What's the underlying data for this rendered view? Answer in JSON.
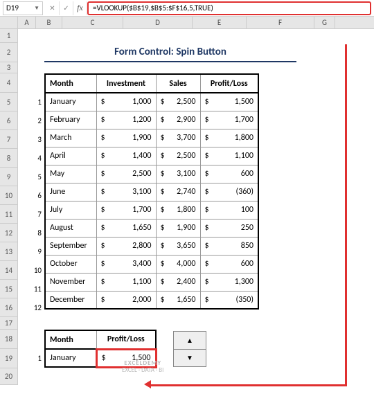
{
  "formula_bar": {
    "name_box": "D19",
    "cancel": "✕",
    "confirm": "✓",
    "fx": "fx",
    "formula": "=VLOOKUP($B$19,$B$5:$F$16,5,TRUE)"
  },
  "columns": [
    "A",
    "B",
    "C",
    "D",
    "E",
    "F",
    "G"
  ],
  "rows": [
    "1",
    "2",
    "3",
    "4",
    "5",
    "6",
    "7",
    "8",
    "9",
    "10",
    "11",
    "12",
    "13",
    "14",
    "15",
    "16",
    "17",
    "18",
    "19",
    "20"
  ],
  "title": "Form Control: Spin Button",
  "headers": {
    "month": "Month",
    "investment": "Investment",
    "sales": "Sales",
    "profit_loss": "Profit/Loss"
  },
  "currency": "$",
  "data": [
    {
      "idx": "1",
      "month": "January",
      "inv": "1,000",
      "sales": "2,500",
      "pl": "1,500"
    },
    {
      "idx": "2",
      "month": "February",
      "inv": "1,200",
      "sales": "2,900",
      "pl": "1,700"
    },
    {
      "idx": "3",
      "month": "March",
      "inv": "1,900",
      "sales": "3,700",
      "pl": "1,800"
    },
    {
      "idx": "4",
      "month": "April",
      "inv": "1,400",
      "sales": "2,500",
      "pl": "1,100"
    },
    {
      "idx": "5",
      "month": "May",
      "inv": "2,500",
      "sales": "3,100",
      "pl": "600"
    },
    {
      "idx": "6",
      "month": "June",
      "inv": "3,100",
      "sales": "2,740",
      "pl": "(360)"
    },
    {
      "idx": "7",
      "month": "July",
      "inv": "1,700",
      "sales": "1,800",
      "pl": "100"
    },
    {
      "idx": "8",
      "month": "August",
      "inv": "1,650",
      "sales": "1,900",
      "pl": "250"
    },
    {
      "idx": "9",
      "month": "September",
      "inv": "2,800",
      "sales": "3,650",
      "pl": "850"
    },
    {
      "idx": "10",
      "month": "October",
      "inv": "3,400",
      "sales": "4,000",
      "pl": "600"
    },
    {
      "idx": "11",
      "month": "November",
      "inv": "1,100",
      "sales": "2,400",
      "pl": "1,300"
    },
    {
      "idx": "12",
      "month": "December",
      "inv": "2,000",
      "sales": "1,650",
      "pl": "(350)"
    }
  ],
  "lookup": {
    "idx": "1",
    "month": "January",
    "pl": "1,500"
  },
  "spin": {
    "up": "▲",
    "down": "▼"
  },
  "watermark": {
    "line1": "EXCELDEMY",
    "line2": "EXCEL · DATA · BI"
  },
  "colors": {
    "highlight": "#e03030",
    "title_text": "#1f3864",
    "header_bg": "#e6e6e6",
    "border": "#999999"
  }
}
